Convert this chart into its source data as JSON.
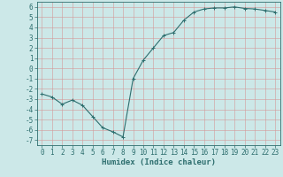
{
  "title": "",
  "xlabel": "Humidex (Indice chaleur)",
  "x": [
    0,
    1,
    2,
    3,
    4,
    5,
    6,
    7,
    8,
    9,
    10,
    11,
    12,
    13,
    14,
    15,
    16,
    17,
    18,
    19,
    20,
    21,
    22,
    23
  ],
  "y": [
    -2.5,
    -2.8,
    -3.5,
    -3.1,
    -3.6,
    -4.7,
    -5.8,
    -6.2,
    -6.7,
    -1.0,
    0.8,
    2.0,
    3.2,
    3.5,
    4.7,
    5.5,
    5.8,
    5.9,
    5.9,
    6.0,
    5.85,
    5.8,
    5.65,
    5.5
  ],
  "line_color": "#2d6e6e",
  "marker": "+",
  "marker_size": 3,
  "bg_color": "#cce8e8",
  "grid_color": "#d49898",
  "ylim": [
    -7.5,
    6.5
  ],
  "xlim": [
    -0.5,
    23.5
  ],
  "yticks": [
    -7,
    -6,
    -5,
    -4,
    -3,
    -2,
    -1,
    0,
    1,
    2,
    3,
    4,
    5,
    6
  ],
  "xticks": [
    0,
    1,
    2,
    3,
    4,
    5,
    6,
    7,
    8,
    9,
    10,
    11,
    12,
    13,
    14,
    15,
    16,
    17,
    18,
    19,
    20,
    21,
    22,
    23
  ],
  "tick_color": "#2d6e6e",
  "xlabel_fontsize": 6.5,
  "tick_fontsize": 5.5
}
